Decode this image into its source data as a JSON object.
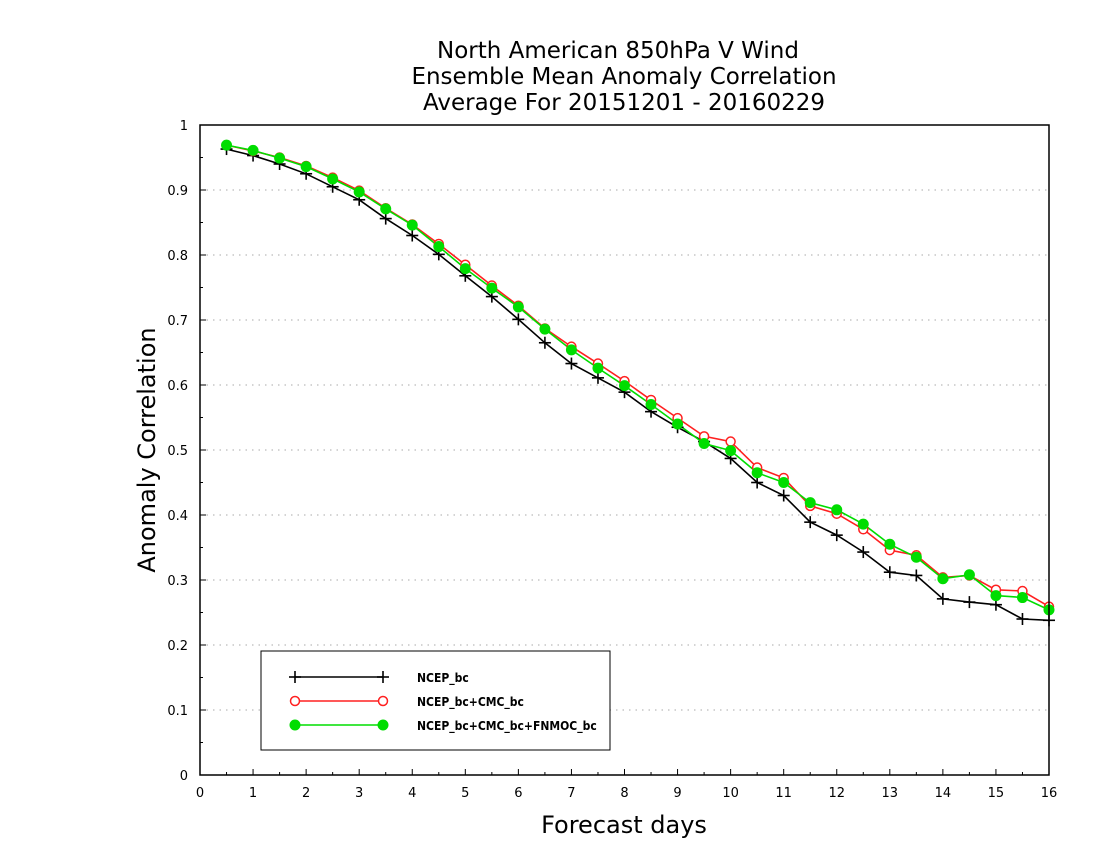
{
  "chart_data": {
    "type": "line",
    "title": [
      "North American 850hPa V Wind",
      "Ensemble Mean Anomaly Correlation",
      "Average For 20151201 - 20160229"
    ],
    "xlabel": "Forecast days",
    "ylabel": "Anomaly Correlation",
    "xlim": [
      0,
      16
    ],
    "ylim": [
      0,
      1
    ],
    "xticks": [
      0,
      1,
      2,
      3,
      4,
      5,
      6,
      7,
      8,
      9,
      10,
      11,
      12,
      13,
      14,
      15,
      16
    ],
    "yticks": [
      0,
      0.1,
      0.2,
      0.3,
      0.4,
      0.5,
      0.6,
      0.7,
      0.8,
      0.9,
      1
    ],
    "ytick_labels": [
      "0",
      "0.1",
      "0.2",
      "0.3",
      "0.4",
      "0.5",
      "0.6",
      "0.7",
      "0.8",
      "0.9",
      "1"
    ],
    "grid": "horizontal-dotted",
    "legend_position": "bottom-left",
    "x": [
      0.5,
      1.0,
      1.5,
      2.0,
      2.5,
      3.0,
      3.5,
      4.0,
      4.5,
      5.0,
      5.5,
      6.0,
      6.5,
      7.0,
      7.5,
      8.0,
      8.5,
      9.0,
      9.5,
      10.0,
      10.5,
      11.0,
      11.5,
      12.0,
      12.5,
      13.0,
      13.5,
      14.0,
      14.5,
      15.0,
      15.5,
      16.0
    ],
    "series": [
      {
        "name": "NCEP_bc",
        "color": "#000000",
        "marker": "plus",
        "values": [
          0.963,
          0.953,
          0.94,
          0.925,
          0.905,
          0.885,
          0.856,
          0.83,
          0.801,
          0.768,
          0.736,
          0.701,
          0.665,
          0.633,
          0.611,
          0.589,
          0.559,
          0.535,
          0.513,
          0.487,
          0.45,
          0.43,
          0.389,
          0.369,
          0.343,
          0.312,
          0.307,
          0.271,
          0.266,
          0.262,
          0.24,
          0.238
        ]
      },
      {
        "name": "NCEP_bc+CMC_bc",
        "color": "#ff2020",
        "marker": "open-circle",
        "values": [
          0.969,
          0.96,
          0.95,
          0.937,
          0.919,
          0.899,
          0.872,
          0.847,
          0.817,
          0.785,
          0.753,
          0.722,
          0.687,
          0.659,
          0.633,
          0.606,
          0.577,
          0.549,
          0.521,
          0.513,
          0.473,
          0.457,
          0.414,
          0.402,
          0.378,
          0.346,
          0.338,
          0.304,
          0.307,
          0.285,
          0.283,
          0.259
        ]
      },
      {
        "name": "NCEP_bc+CMC_bc+FNMOC_bc",
        "color": "#00dd00",
        "marker": "filled-circle",
        "values": [
          0.969,
          0.961,
          0.949,
          0.936,
          0.917,
          0.897,
          0.871,
          0.846,
          0.813,
          0.779,
          0.749,
          0.72,
          0.686,
          0.654,
          0.626,
          0.599,
          0.57,
          0.54,
          0.51,
          0.499,
          0.465,
          0.45,
          0.419,
          0.408,
          0.386,
          0.355,
          0.335,
          0.302,
          0.308,
          0.276,
          0.273,
          0.254
        ]
      }
    ]
  }
}
